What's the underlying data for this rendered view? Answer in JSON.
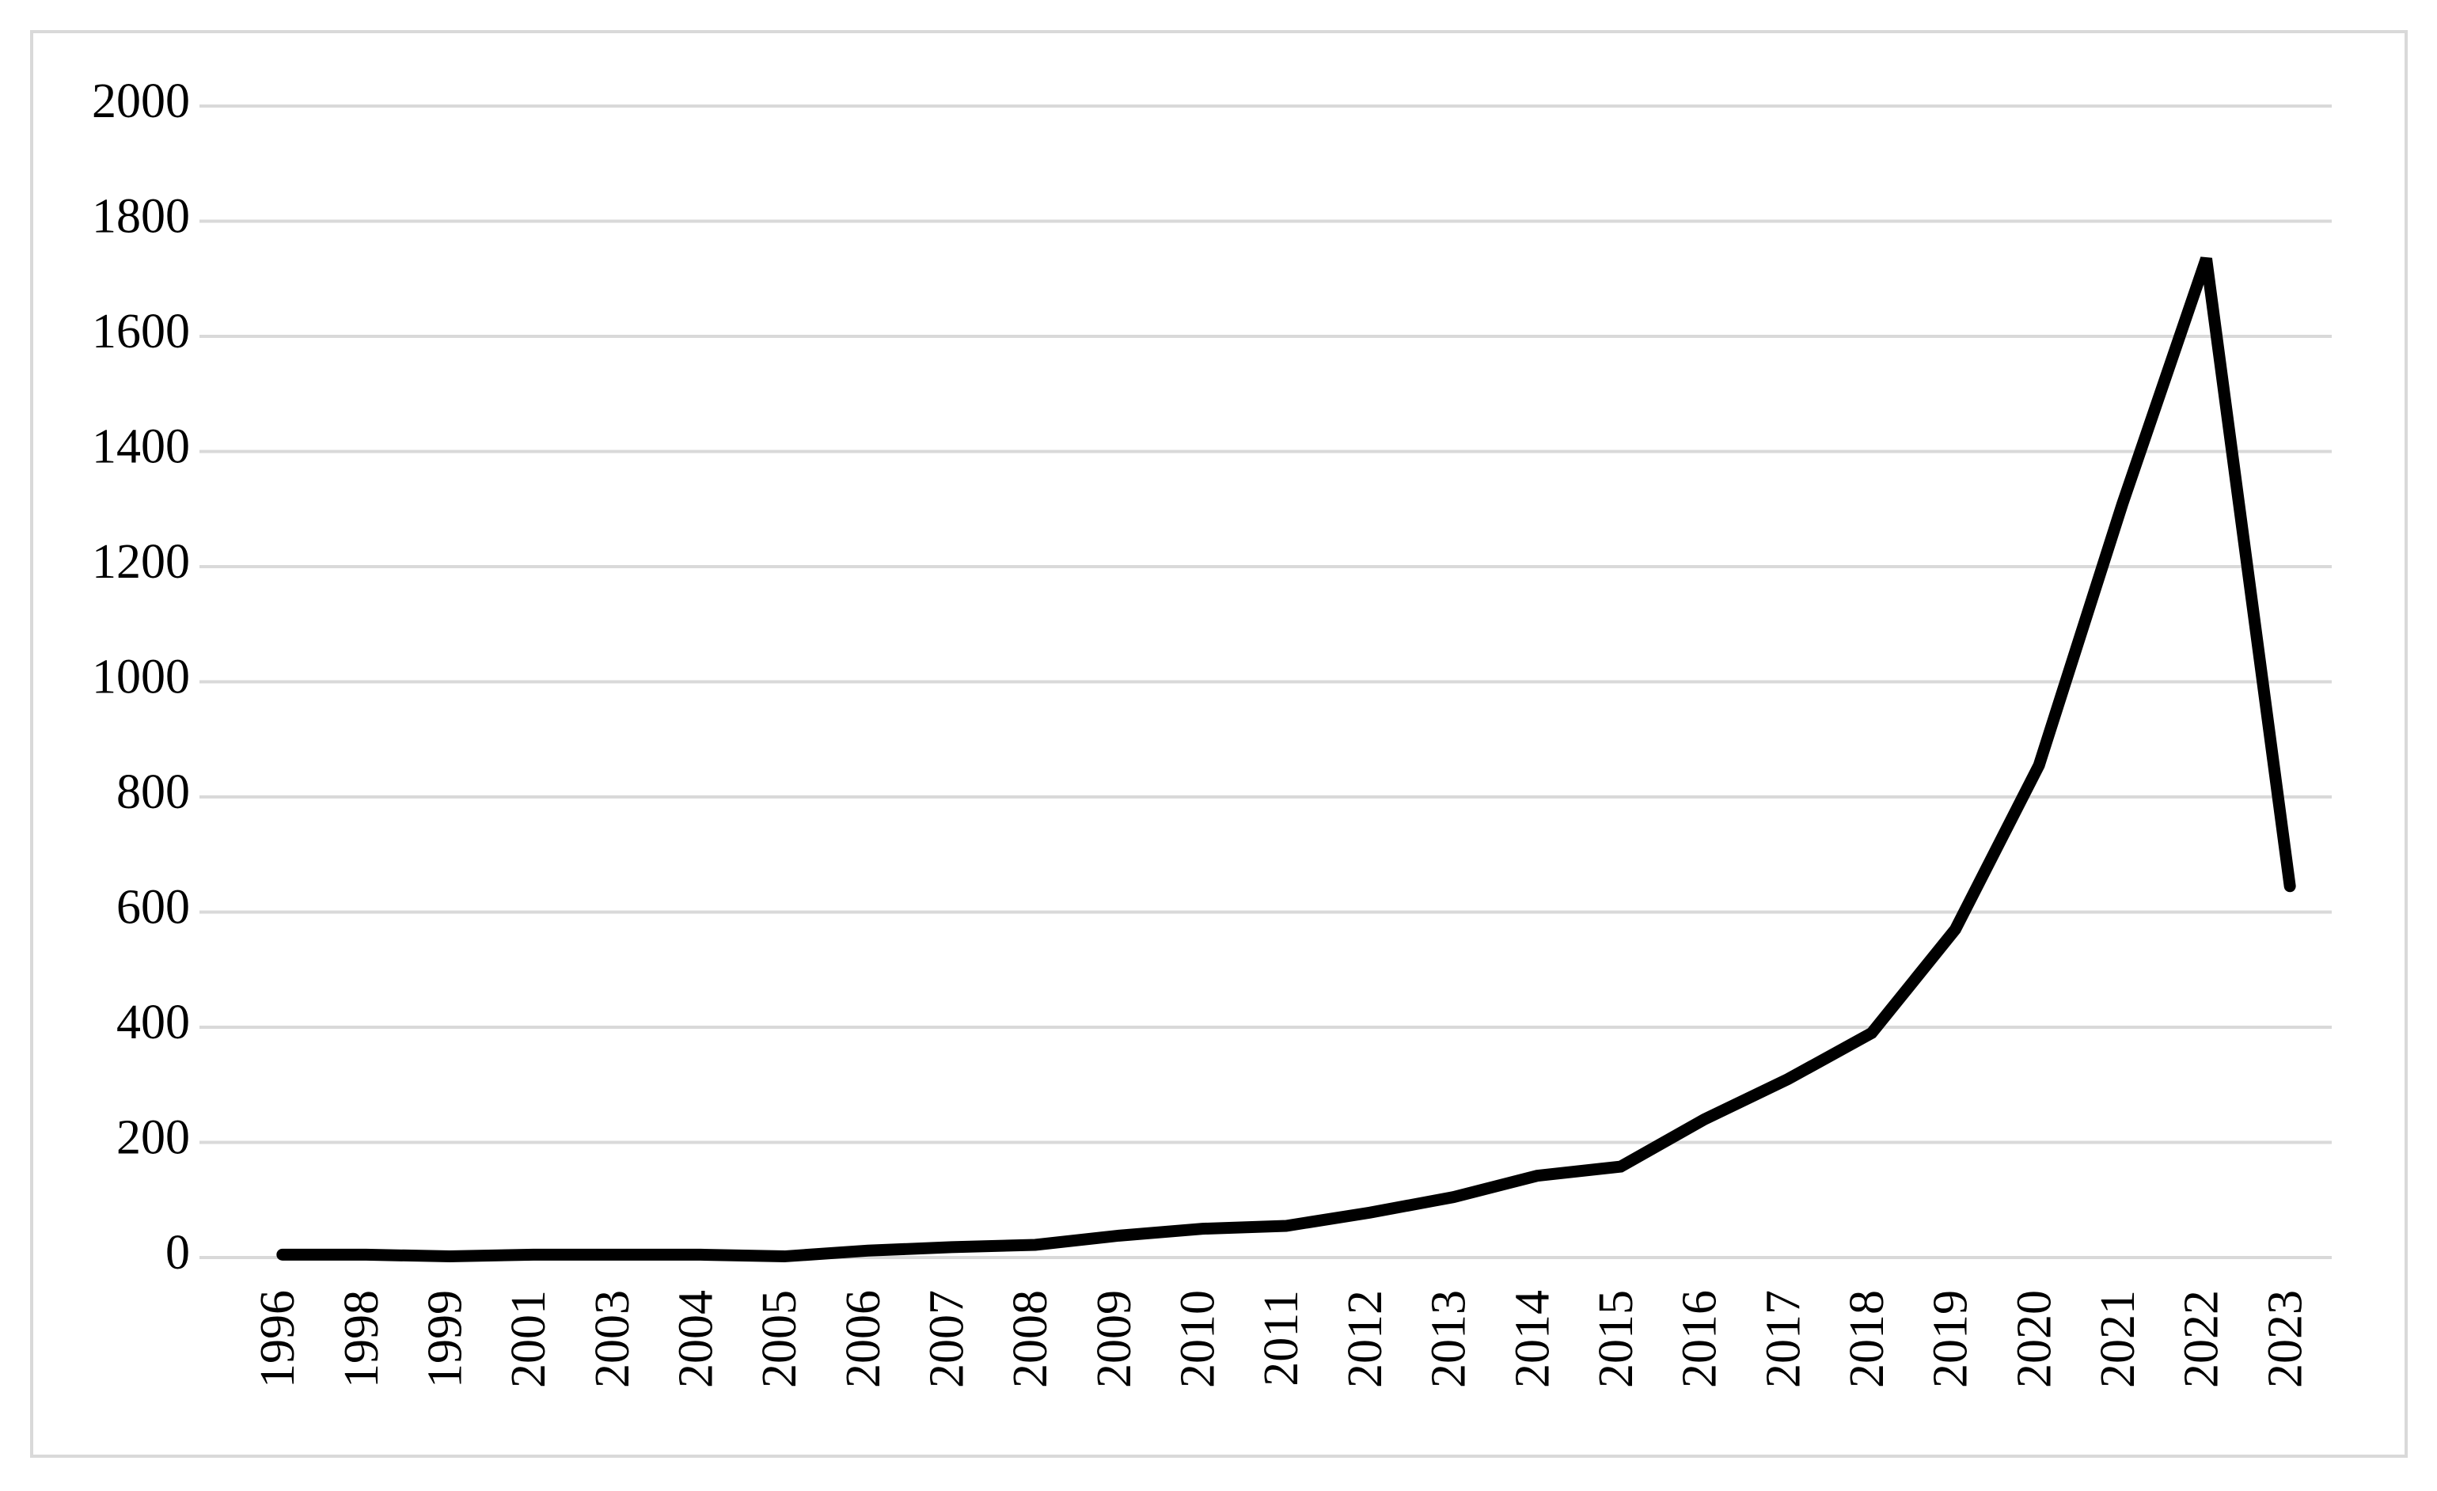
{
  "chart_data": {
    "type": "line",
    "categories": [
      "1996",
      "1998",
      "1999",
      "2001",
      "2003",
      "2004",
      "2005",
      "2006",
      "2007",
      "2008",
      "2009",
      "2010",
      "2011",
      "2012",
      "2013",
      "2014",
      "2015",
      "2016",
      "2017",
      "2018",
      "2019",
      "2020",
      "2021",
      "2022",
      "2023"
    ],
    "series": [
      {
        "color": "#000000",
        "values": [
          5,
          5,
          2,
          5,
          5,
          5,
          2,
          12,
          18,
          22,
          38,
          50,
          55,
          78,
          105,
          142,
          158,
          240,
          310,
          390,
          570,
          855,
          1310,
          1735,
          645
        ]
      }
    ],
    "ylim": [
      0,
      2000
    ],
    "yticks": [
      0,
      200,
      400,
      600,
      800,
      1000,
      1200,
      1400,
      1600,
      1800,
      2000
    ],
    "grid": true
  }
}
